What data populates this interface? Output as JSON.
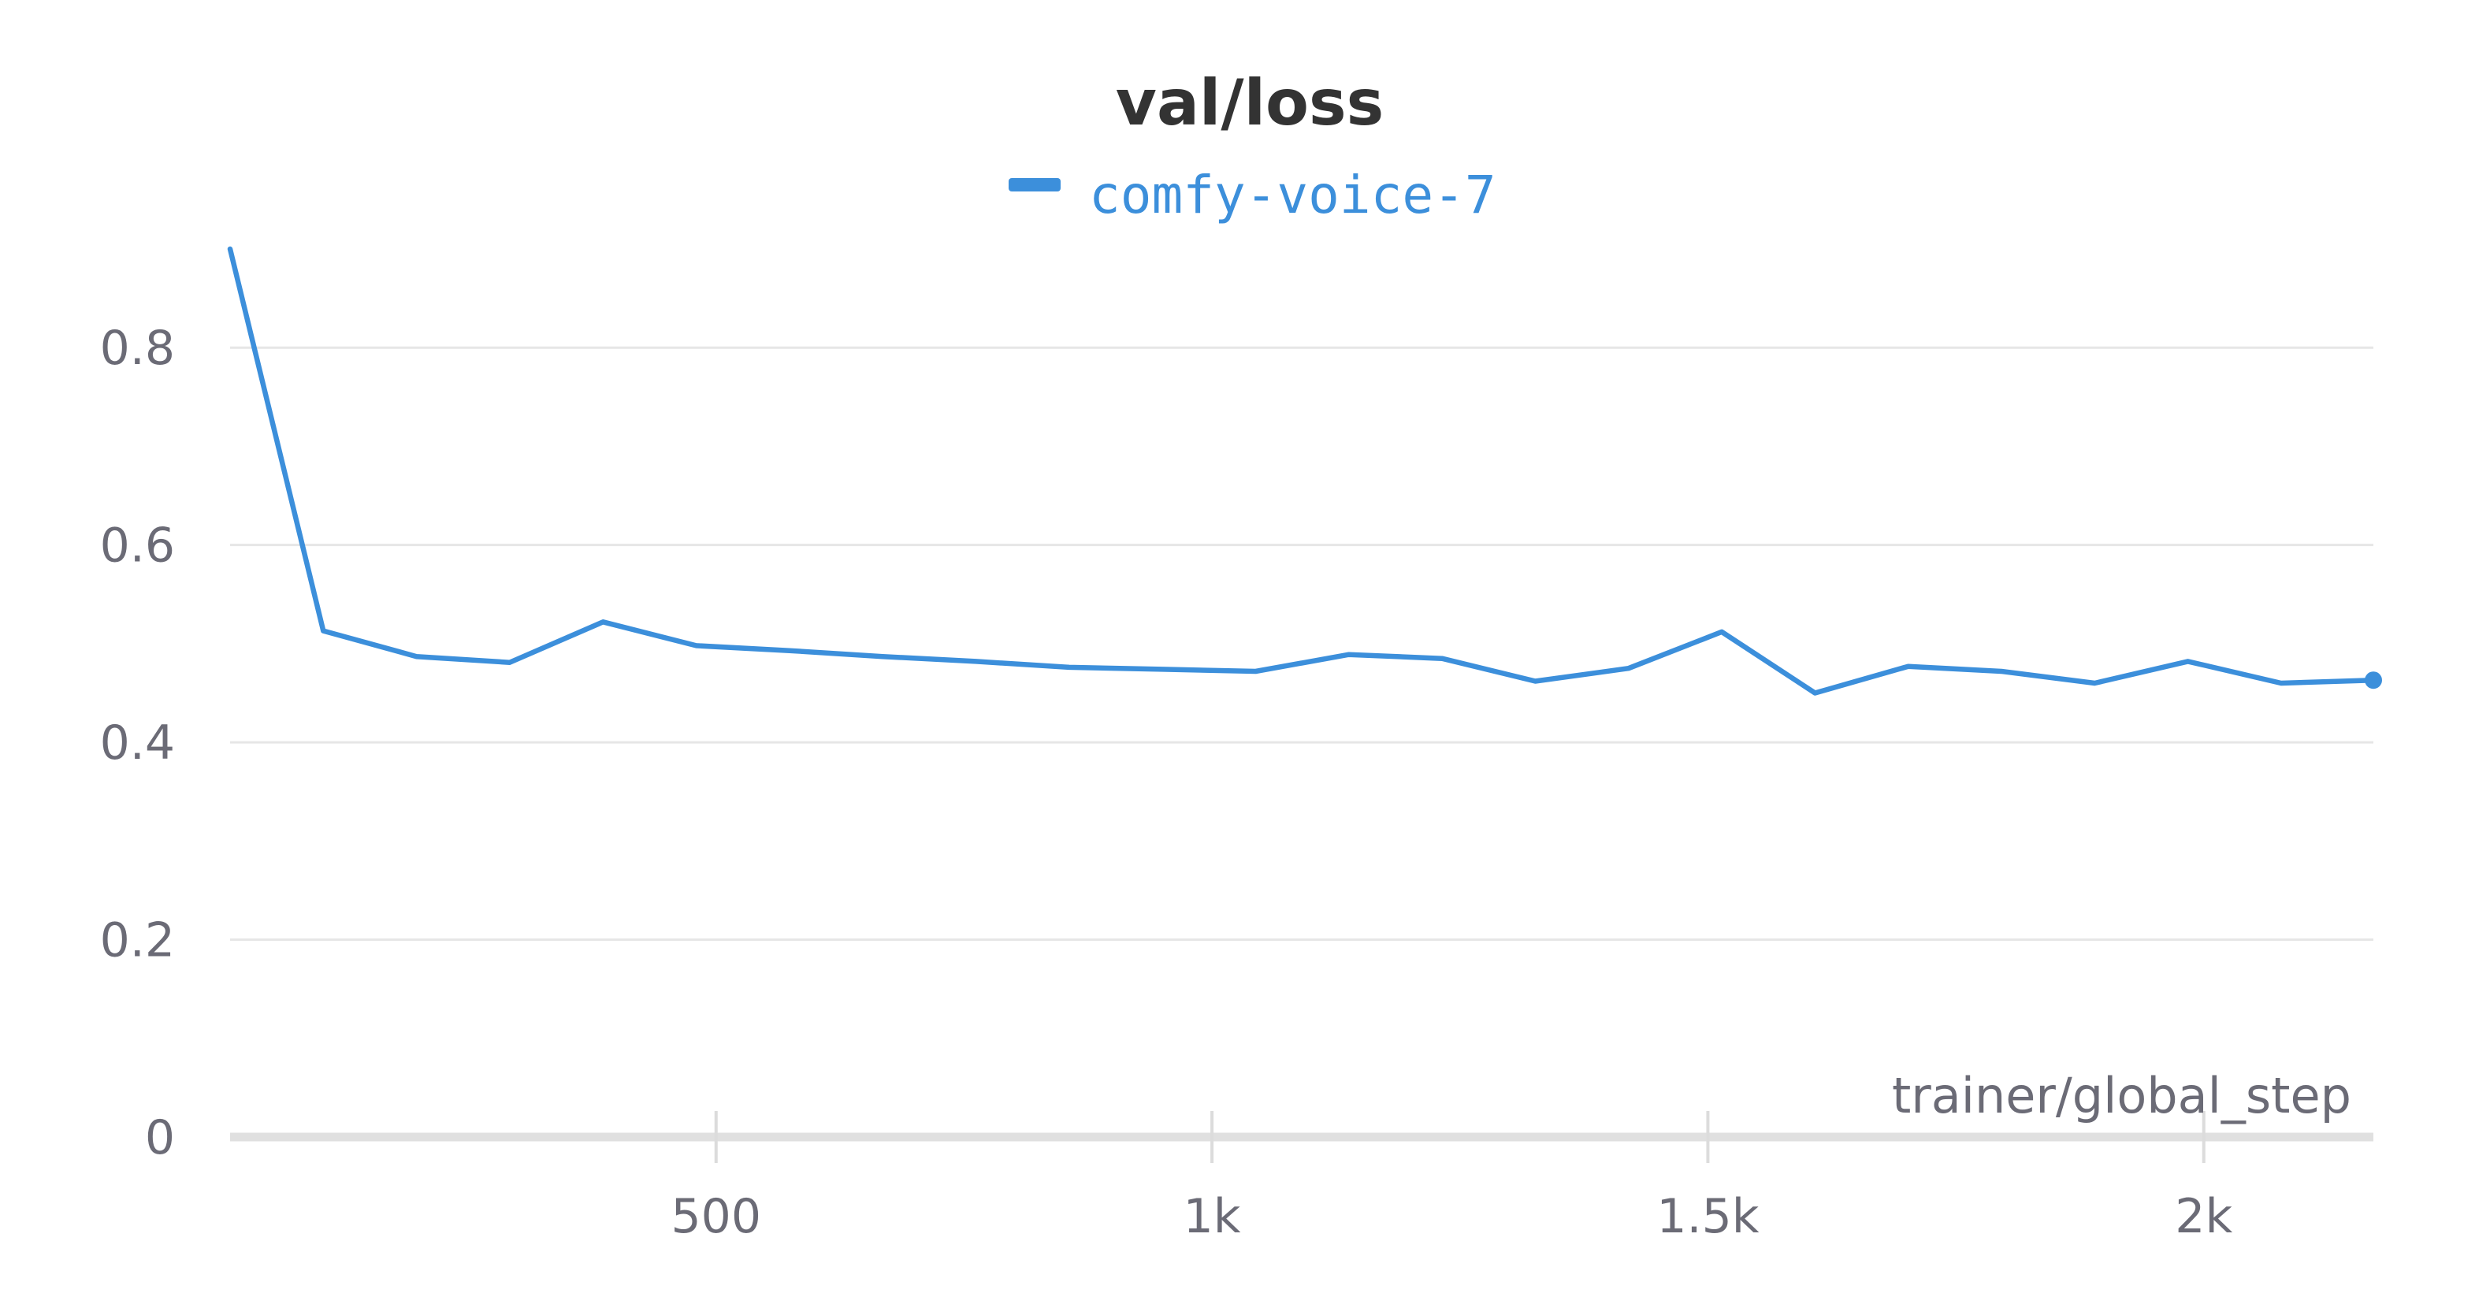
{
  "chart_data": {
    "type": "line",
    "title": "val/loss",
    "xlabel": "trainer/global_step",
    "ylabel": "",
    "xlim": [
      10,
      2171
    ],
    "ylim": [
      0,
      0.9
    ],
    "grid": true,
    "legend_position": "top-center",
    "x_ticks": [
      {
        "value": 500,
        "label": "500"
      },
      {
        "value": 1000,
        "label": "1k"
      },
      {
        "value": 1500,
        "label": "1.5k"
      },
      {
        "value": 2000,
        "label": "2k"
      }
    ],
    "y_ticks": [
      {
        "value": 0,
        "label": "0"
      },
      {
        "value": 0.2,
        "label": "0.2"
      },
      {
        "value": 0.4,
        "label": "0.4"
      },
      {
        "value": 0.6,
        "label": "0.6"
      },
      {
        "value": 0.8,
        "label": "0.8"
      }
    ],
    "series": [
      {
        "name": "comfy-voice-7",
        "color": "#3c8fdb",
        "x": [
          10,
          104,
          198,
          292,
          386,
          480,
          574,
          668,
          762,
          856,
          950,
          1044,
          1138,
          1232,
          1326,
          1420,
          1514,
          1608,
          1702,
          1796,
          1890,
          1984,
          2078,
          2171
        ],
        "y": [
          0.9,
          0.513,
          0.487,
          0.481,
          0.522,
          0.498,
          0.493,
          0.487,
          0.482,
          0.476,
          0.474,
          0.472,
          0.489,
          0.485,
          0.462,
          0.475,
          0.512,
          0.45,
          0.477,
          0.472,
          0.46,
          0.482,
          0.46,
          0.463
        ]
      }
    ]
  }
}
